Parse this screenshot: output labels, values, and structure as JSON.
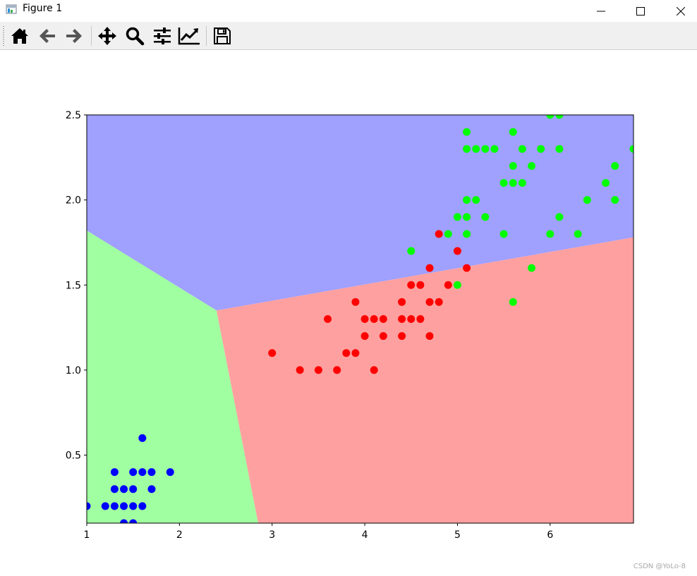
{
  "window": {
    "title": "Figure 1",
    "controls": [
      "minimize-icon",
      "maximize-icon",
      "close-icon"
    ]
  },
  "toolbar": {
    "buttons": [
      {
        "name": "home-button",
        "icon": "home-icon"
      },
      {
        "name": "back-button",
        "icon": "arrow-left-icon"
      },
      {
        "name": "forward-button",
        "icon": "arrow-right-icon"
      },
      {
        "name": "pan-button",
        "icon": "move-icon"
      },
      {
        "name": "zoom-button",
        "icon": "magnifier-icon"
      },
      {
        "name": "subplots-button",
        "icon": "sliders-icon"
      },
      {
        "name": "axes-edit-button",
        "icon": "line-chart-icon"
      },
      {
        "name": "save-button",
        "icon": "floppy-icon"
      }
    ]
  },
  "chart_data": {
    "type": "scatter",
    "title": "",
    "xlabel": "",
    "ylabel": "",
    "xlim": [
      1.0,
      6.9
    ],
    "ylim": [
      0.1,
      2.5
    ],
    "xticks": [
      "1",
      "2",
      "3",
      "4",
      "5",
      "6"
    ],
    "yticks": [
      "0.5",
      "1.0",
      "1.5",
      "2.0",
      "2.5"
    ],
    "grid": false,
    "legend": "none",
    "decision_regions": [
      {
        "color": "#a0a0ff",
        "polygon": [
          [
            1.0,
            2.5
          ],
          [
            6.9,
            2.5
          ],
          [
            6.9,
            1.78
          ],
          [
            2.4,
            1.35
          ],
          [
            1.0,
            1.82
          ]
        ]
      },
      {
        "color": "#a0ffa0",
        "polygon": [
          [
            1.0,
            1.82
          ],
          [
            2.4,
            1.35
          ],
          [
            2.85,
            0.1
          ],
          [
            1.0,
            0.1
          ]
        ]
      },
      {
        "color": "#ffa0a0",
        "polygon": [
          [
            2.4,
            1.35
          ],
          [
            6.9,
            1.78
          ],
          [
            6.9,
            0.1
          ],
          [
            2.85,
            0.1
          ]
        ]
      }
    ],
    "series": [
      {
        "color": "#0000ff",
        "points": [
          [
            1.0,
            0.2
          ],
          [
            1.2,
            0.2
          ],
          [
            1.3,
            0.2
          ],
          [
            1.3,
            0.3
          ],
          [
            1.3,
            0.4
          ],
          [
            1.4,
            0.1
          ],
          [
            1.4,
            0.2
          ],
          [
            1.4,
            0.3
          ],
          [
            1.5,
            0.1
          ],
          [
            1.5,
            0.2
          ],
          [
            1.5,
            0.3
          ],
          [
            1.5,
            0.4
          ],
          [
            1.6,
            0.2
          ],
          [
            1.6,
            0.4
          ],
          [
            1.6,
            0.6
          ],
          [
            1.7,
            0.3
          ],
          [
            1.7,
            0.4
          ],
          [
            1.9,
            0.4
          ]
        ]
      },
      {
        "color": "#ff0000",
        "points": [
          [
            3.0,
            1.1
          ],
          [
            3.3,
            1.0
          ],
          [
            3.5,
            1.0
          ],
          [
            3.6,
            1.3
          ],
          [
            3.7,
            1.0
          ],
          [
            3.8,
            1.1
          ],
          [
            3.9,
            1.1
          ],
          [
            3.9,
            1.4
          ],
          [
            4.0,
            1.2
          ],
          [
            4.0,
            1.3
          ],
          [
            4.1,
            1.0
          ],
          [
            4.1,
            1.3
          ],
          [
            4.2,
            1.2
          ],
          [
            4.2,
            1.3
          ],
          [
            4.4,
            1.2
          ],
          [
            4.4,
            1.3
          ],
          [
            4.4,
            1.4
          ],
          [
            4.5,
            1.3
          ],
          [
            4.5,
            1.5
          ],
          [
            4.6,
            1.3
          ],
          [
            4.6,
            1.5
          ],
          [
            4.7,
            1.2
          ],
          [
            4.7,
            1.4
          ],
          [
            4.7,
            1.6
          ],
          [
            4.8,
            1.4
          ],
          [
            4.8,
            1.8
          ],
          [
            4.9,
            1.5
          ],
          [
            5.0,
            1.7
          ],
          [
            5.1,
            1.6
          ]
        ]
      },
      {
        "color": "#00ff00",
        "points": [
          [
            4.5,
            1.7
          ],
          [
            4.9,
            1.8
          ],
          [
            5.0,
            1.5
          ],
          [
            5.0,
            1.9
          ],
          [
            5.1,
            1.8
          ],
          [
            5.1,
            1.9
          ],
          [
            5.1,
            2.0
          ],
          [
            5.1,
            2.3
          ],
          [
            5.1,
            2.4
          ],
          [
            5.2,
            2.0
          ],
          [
            5.2,
            2.3
          ],
          [
            5.3,
            1.9
          ],
          [
            5.3,
            2.3
          ],
          [
            5.4,
            2.3
          ],
          [
            5.5,
            1.8
          ],
          [
            5.5,
            2.1
          ],
          [
            5.6,
            1.4
          ],
          [
            5.6,
            2.1
          ],
          [
            5.6,
            2.2
          ],
          [
            5.6,
            2.4
          ],
          [
            5.7,
            2.1
          ],
          [
            5.7,
            2.3
          ],
          [
            5.8,
            1.6
          ],
          [
            5.8,
            2.2
          ],
          [
            5.9,
            2.3
          ],
          [
            6.0,
            1.8
          ],
          [
            6.0,
            2.5
          ],
          [
            6.1,
            1.9
          ],
          [
            6.1,
            2.3
          ],
          [
            6.1,
            2.5
          ],
          [
            6.3,
            1.8
          ],
          [
            6.4,
            2.0
          ],
          [
            6.6,
            2.1
          ],
          [
            6.7,
            2.0
          ],
          [
            6.7,
            2.2
          ],
          [
            6.9,
            2.3
          ]
        ]
      }
    ]
  },
  "watermark": "CSDN @YoLo-8"
}
